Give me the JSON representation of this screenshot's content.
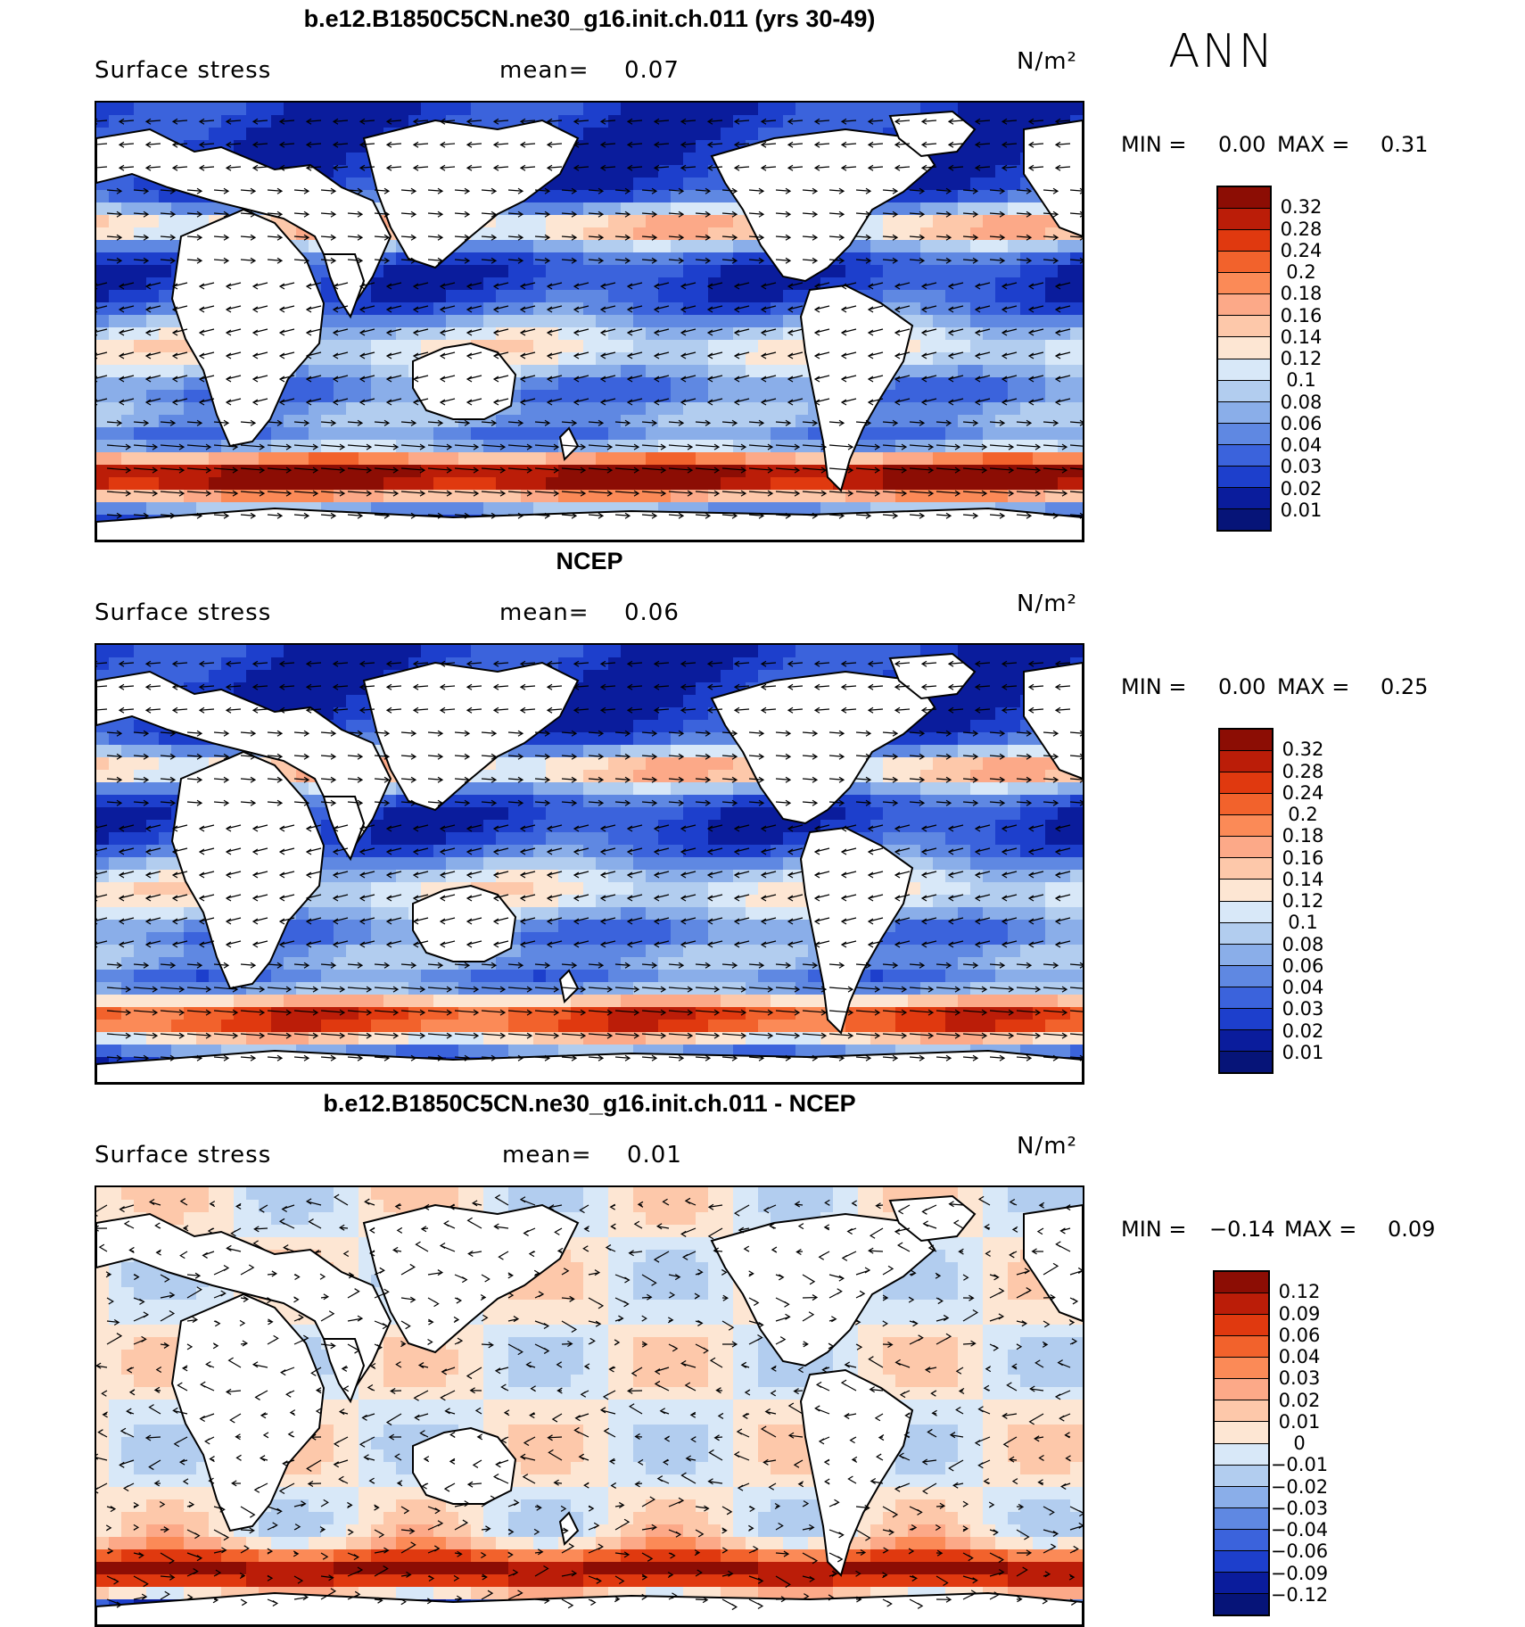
{
  "season": "ANN",
  "panels": [
    {
      "id": "model",
      "title": "b.e12.B1850C5CN.ne30_g16.init.ch.011 (yrs 30-49)",
      "variable": "Surface stress",
      "mean_label": "mean=",
      "mean_value": "0.07",
      "units": "N/m²",
      "min_label": "MIN =",
      "min_value": "0.00",
      "max_label": "MAX =",
      "max_value": "0.31",
      "colorbar_labels": [
        "0.32",
        "0.28",
        "0.24",
        "0.2",
        "0.18",
        "0.16",
        "0.14",
        "0.12",
        "0.1",
        "0.08",
        "0.06",
        "0.04",
        "0.03",
        "0.02",
        "0.01"
      ],
      "colorbar_colors": [
        "#8c0d04",
        "#bb1d08",
        "#e0390f",
        "#f2622c",
        "#fb8a57",
        "#fca988",
        "#fdc8aa",
        "#fde6d3",
        "#d8e8f8",
        "#b2cdef",
        "#8aaee9",
        "#5f88e2",
        "#3b63dc",
        "#1d3fcc",
        "#0a1c9c",
        "#061478"
      ]
    },
    {
      "id": "obs",
      "title": "NCEP",
      "variable": "Surface stress",
      "mean_label": "mean=",
      "mean_value": "0.06",
      "units": "N/m²",
      "min_label": "MIN =",
      "min_value": "0.00",
      "max_label": "MAX =",
      "max_value": "0.25",
      "colorbar_labels": [
        "0.32",
        "0.28",
        "0.24",
        "0.2",
        "0.18",
        "0.16",
        "0.14",
        "0.12",
        "0.1",
        "0.08",
        "0.06",
        "0.04",
        "0.03",
        "0.02",
        "0.01"
      ],
      "colorbar_colors": [
        "#8c0d04",
        "#bb1d08",
        "#e0390f",
        "#f2622c",
        "#fb8a57",
        "#fca988",
        "#fdc8aa",
        "#fde6d3",
        "#d8e8f8",
        "#b2cdef",
        "#8aaee9",
        "#5f88e2",
        "#3b63dc",
        "#1d3fcc",
        "#0a1c9c",
        "#061478"
      ]
    },
    {
      "id": "diff",
      "title": "b.e12.B1850C5CN.ne30_g16.init.ch.011 - NCEP",
      "variable": "Surface stress",
      "mean_label": "mean=",
      "mean_value": "0.01",
      "units": "N/m²",
      "min_label": "MIN =",
      "min_value": "−0.14",
      "max_label": "MAX =",
      "max_value": "0.09",
      "colorbar_labels": [
        "0.12",
        "0.09",
        "0.06",
        "0.04",
        "0.03",
        "0.02",
        "0.01",
        "0",
        "−0.01",
        "−0.02",
        "−0.03",
        "−0.04",
        "−0.06",
        "−0.09",
        "−0.12"
      ],
      "colorbar_colors": [
        "#8c0d04",
        "#bb1d08",
        "#e0390f",
        "#f2622c",
        "#fb8a57",
        "#fca988",
        "#fdc8aa",
        "#fde6d3",
        "#d8e8f8",
        "#b2cdef",
        "#8aaee9",
        "#5f88e2",
        "#3b63dc",
        "#1d3fcc",
        "#0a1c9c",
        "#061478"
      ]
    }
  ]
}
